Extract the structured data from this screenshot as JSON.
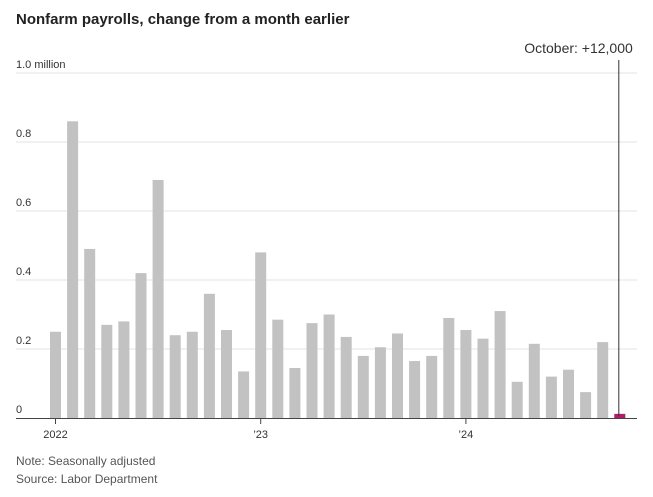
{
  "chart_data": {
    "type": "bar",
    "title": "Nonfarm payrolls, change from a month earlier",
    "unit": "million",
    "ylim": [
      0,
      1.0
    ],
    "yticks": [
      0,
      0.2,
      0.4,
      0.6,
      0.8,
      1.0
    ],
    "ytick_labels": [
      "0",
      "0.2",
      "0.4",
      "0.6",
      "0.8",
      "1.0 million"
    ],
    "xtick_labels": [
      {
        "label": "2022",
        "index": 0
      },
      {
        "label": "’23",
        "index": 12
      },
      {
        "label": "’24",
        "index": 24
      }
    ],
    "categories": [
      "2022-01",
      "2022-02",
      "2022-03",
      "2022-04",
      "2022-05",
      "2022-06",
      "2022-07",
      "2022-08",
      "2022-09",
      "2022-10",
      "2022-11",
      "2022-12",
      "2023-01",
      "2023-02",
      "2023-03",
      "2023-04",
      "2023-05",
      "2023-06",
      "2023-07",
      "2023-08",
      "2023-09",
      "2023-10",
      "2023-11",
      "2023-12",
      "2024-01",
      "2024-02",
      "2024-03",
      "2024-04",
      "2024-05",
      "2024-06",
      "2024-07",
      "2024-08",
      "2024-09",
      "2024-10"
    ],
    "values": [
      0.25,
      0.86,
      0.49,
      0.27,
      0.28,
      0.42,
      0.69,
      0.24,
      0.25,
      0.36,
      0.255,
      0.135,
      0.48,
      0.285,
      0.145,
      0.275,
      0.3,
      0.235,
      0.18,
      0.205,
      0.245,
      0.165,
      0.18,
      0.29,
      0.255,
      0.23,
      0.31,
      0.105,
      0.215,
      0.12,
      0.14,
      0.075,
      0.22,
      0.012
    ],
    "bar_color": "#c2c2c2",
    "highlight_color": "#b01c6b",
    "highlight_index": 33,
    "annotation": "October: +12,000",
    "grid": true
  },
  "notes": {
    "line1": "Note: Seasonally adjusted",
    "line2": "Source: Labor Department"
  }
}
